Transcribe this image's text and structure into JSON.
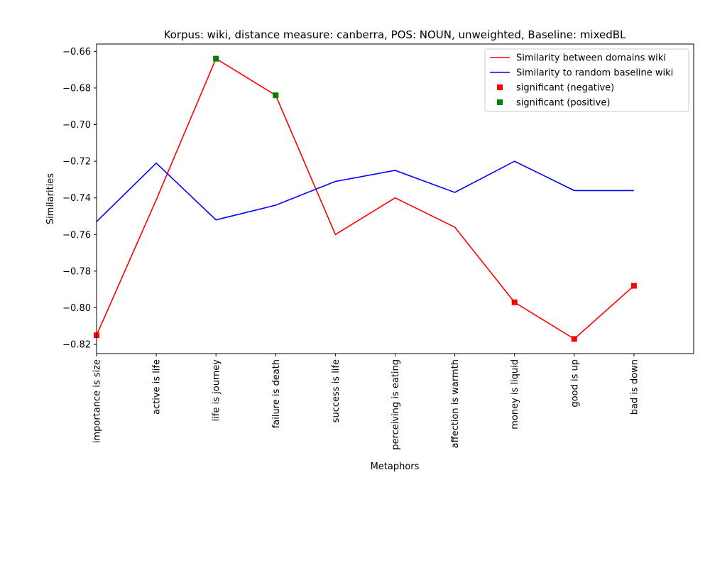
{
  "chart_data": {
    "type": "line",
    "title": "Korpus: wiki, distance measure: canberra, POS: NOUN, unweighted, Baseline: mixedBL",
    "xlabel": "Metaphors",
    "ylabel": "Similarities",
    "categories": [
      "importance is size",
      "active is life",
      "life is journey",
      "failure is death",
      "success is life",
      "perceiving is eating",
      "affection is warmth",
      "money is liquid",
      "good is up",
      "bad is down"
    ],
    "xlim": [
      0,
      10
    ],
    "ylim": [
      -0.825,
      -0.656
    ],
    "yticks": [
      -0.66,
      -0.68,
      -0.7,
      -0.72,
      -0.74,
      -0.76,
      -0.78,
      -0.8,
      -0.82
    ],
    "ytick_labels": [
      "−0.66",
      "−0.68",
      "−0.70",
      "−0.72",
      "−0.74",
      "−0.76",
      "−0.78",
      "−0.80",
      "−0.82"
    ],
    "series": [
      {
        "name": "Similarity between domains wiki",
        "color": "#ff0000",
        "values": [
          -0.815,
          -0.741,
          -0.664,
          -0.684,
          -0.76,
          -0.74,
          -0.756,
          -0.797,
          -0.817,
          -0.788
        ]
      },
      {
        "name": "Similarity to random baseline wiki",
        "color": "#0000ff",
        "values": [
          -0.753,
          -0.721,
          -0.752,
          -0.744,
          -0.731,
          -0.725,
          -0.737,
          -0.72,
          -0.736,
          -0.736
        ]
      }
    ],
    "markers": [
      {
        "name": "significant (negative)",
        "color": "#ff0000",
        "indices": [
          0,
          7,
          8,
          9
        ]
      },
      {
        "name": "significant (positive)",
        "color": "#008000",
        "indices": [
          2,
          3
        ]
      }
    ],
    "legend_position": "top-right",
    "grid": false
  }
}
